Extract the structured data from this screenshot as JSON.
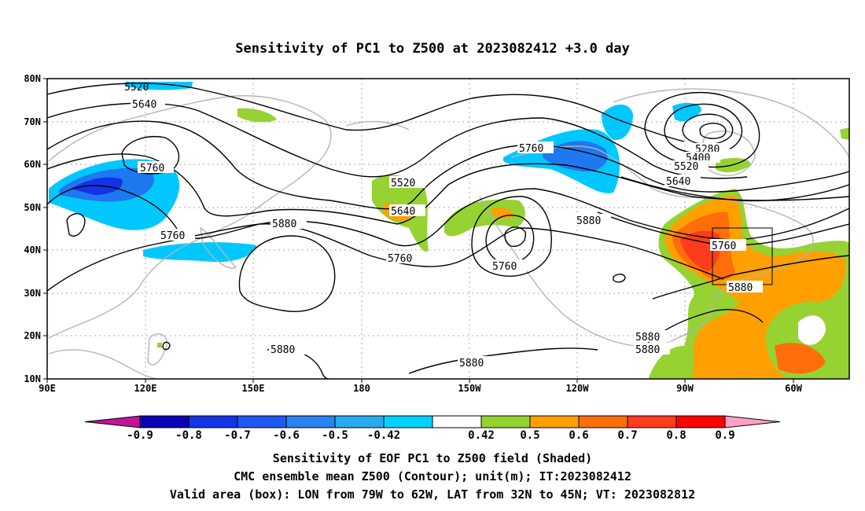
{
  "title": "Sensitivity of PC1 to Z500 at 2023082412 +3.0 day",
  "lat_ticks": [
    "80N",
    "70N",
    "60N",
    "50N",
    "40N",
    "30N",
    "20N",
    "10N"
  ],
  "lon_ticks": [
    "90E",
    "120E",
    "150E",
    "180",
    "150W",
    "120W",
    "90W",
    "60W"
  ],
  "colorbar": {
    "labels": [
      "-0.9",
      "-0.8",
      "-0.7",
      "-0.6",
      "-0.5",
      "-0.42",
      "0.42",
      "0.5",
      "0.6",
      "0.7",
      "0.8",
      "0.9"
    ],
    "colors": [
      "#c0149b",
      "#0a00b4",
      "#1432e6",
      "#1e5af0",
      "#2882f0",
      "#28aaf0",
      "#00d2ff",
      "#ffffff",
      "#96d232",
      "#ffa000",
      "#ff6e0a",
      "#ff3c1e",
      "#ff0000",
      "#ffa0c8"
    ]
  },
  "contour_labels": [
    "5520",
    "5640",
    "5760",
    "5760",
    "5880",
    "5520",
    "5640",
    "5760",
    "5760",
    "5760",
    "5880",
    "5280",
    "5400",
    "5520",
    "5640",
    "5760",
    "5880",
    "5880",
    "5880",
    "5880",
    "5880"
  ],
  "captions": [
    "Sensitivity of EOF PC1 to Z500 field (Shaded)",
    "CMC ensemble mean Z500 (Contour); unit(m); IT:2023082412",
    "Valid area (box): LON from 79W to 62W, LAT from 32N to 45N; VT: 2023082812"
  ]
}
